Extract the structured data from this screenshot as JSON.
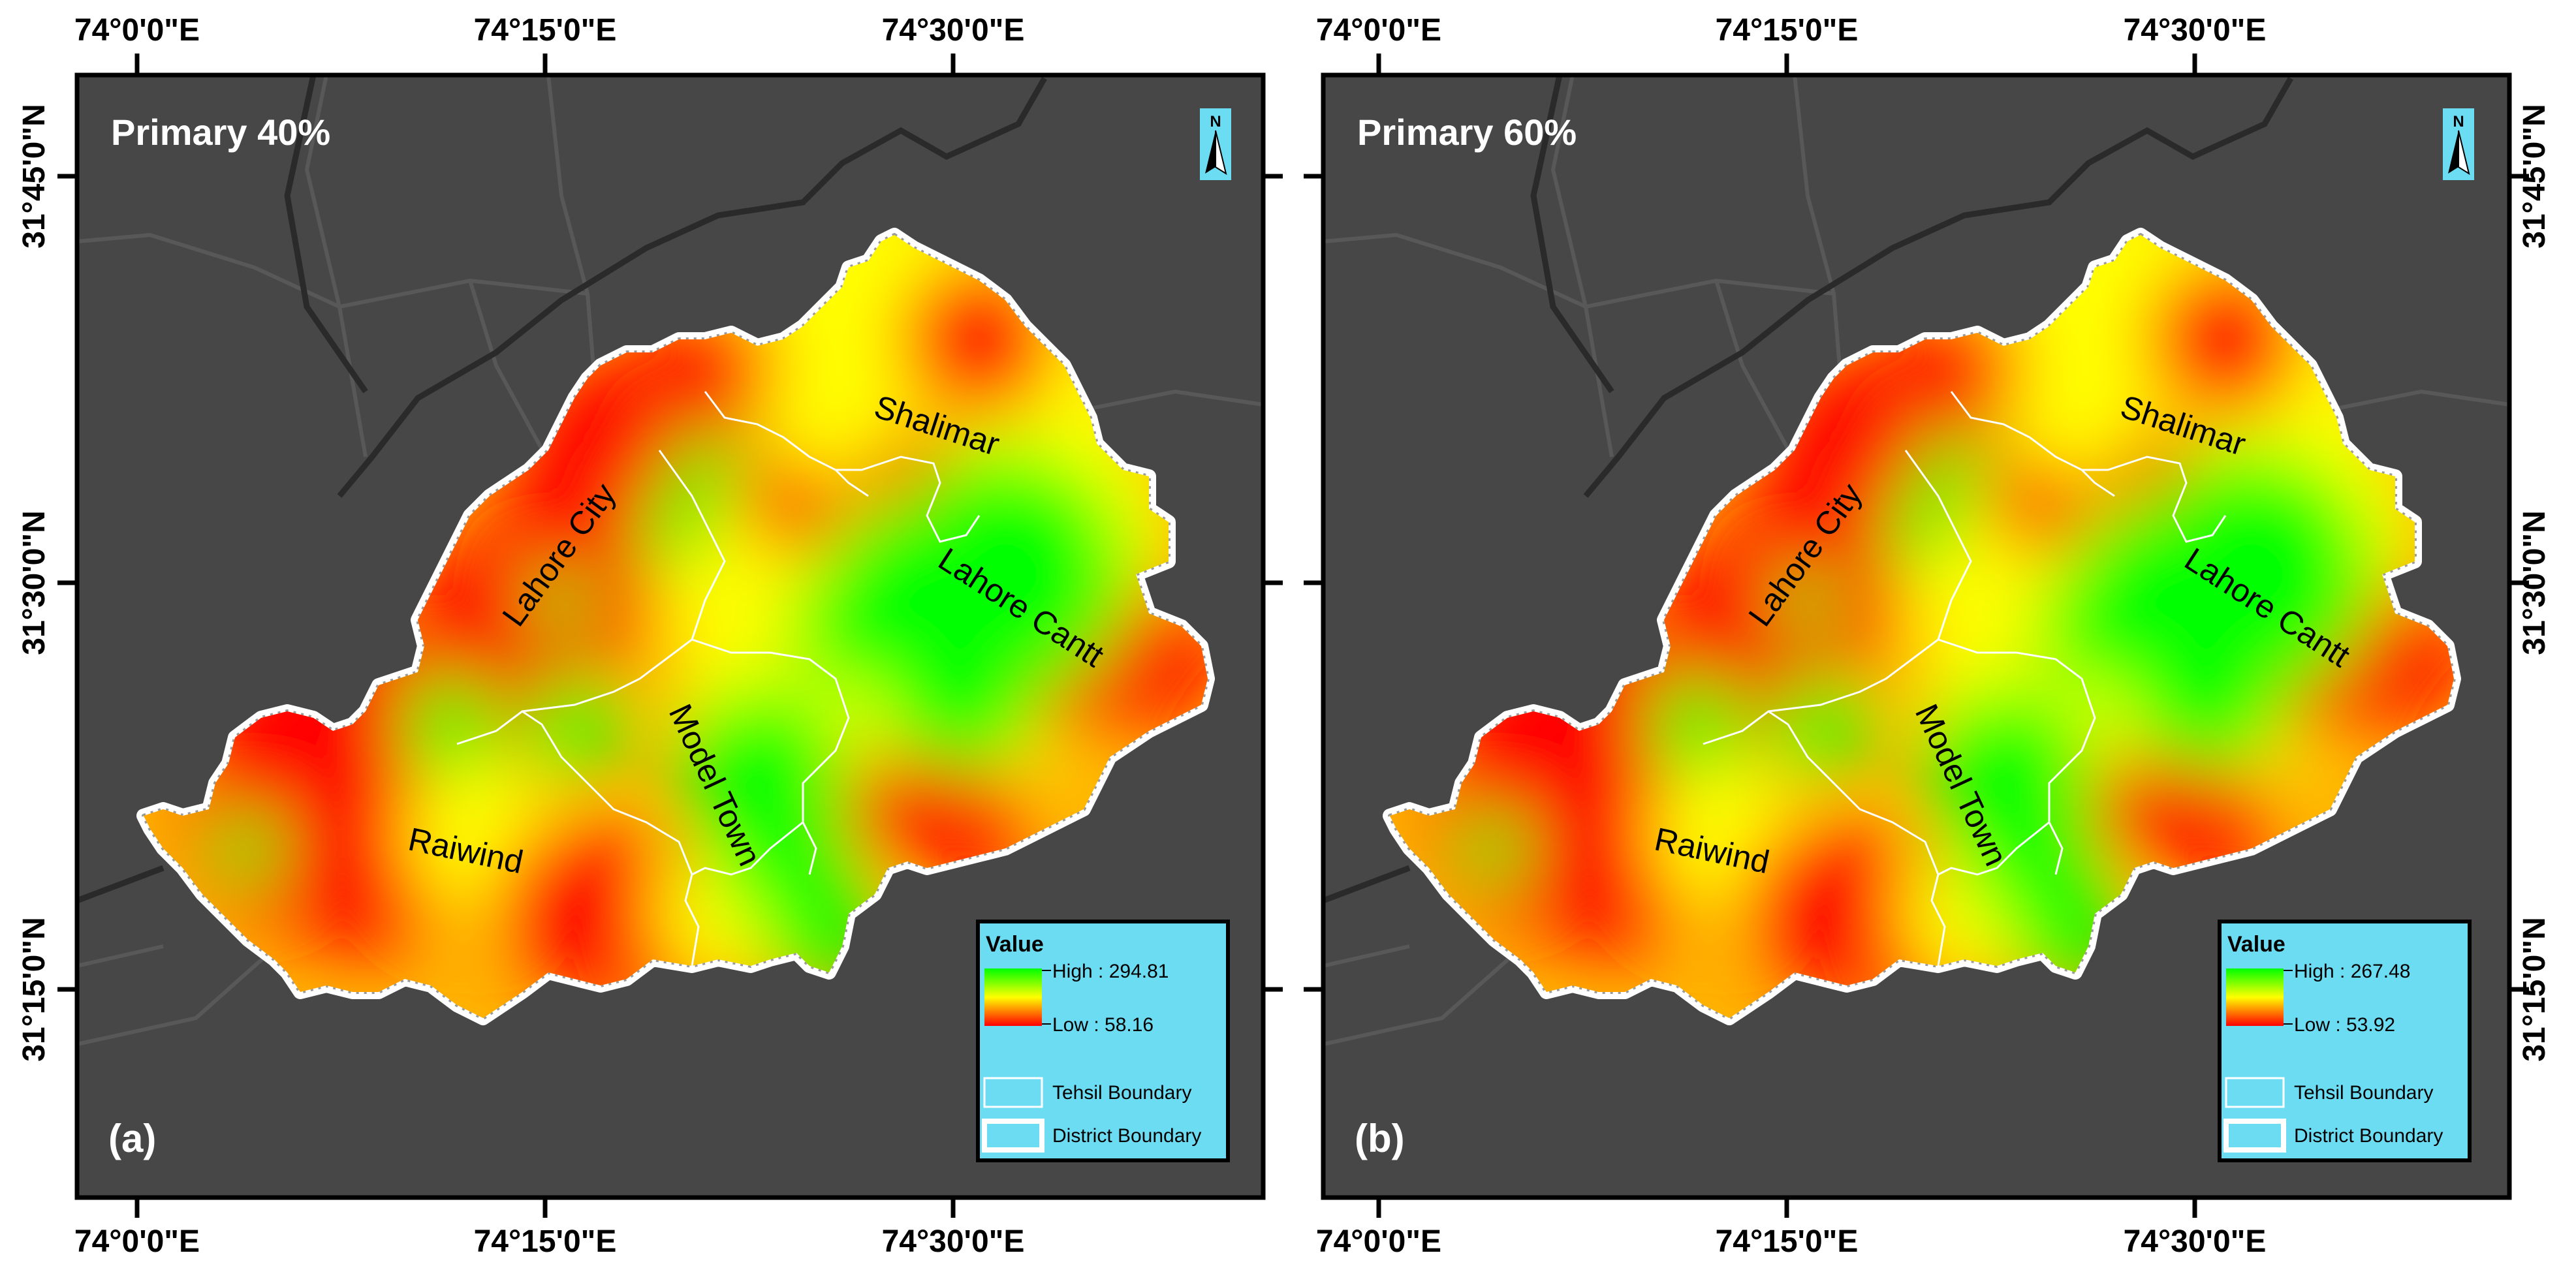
{
  "panels": [
    {
      "title": "Primary 40%",
      "letter": "(a)",
      "legend": {
        "title": "Value",
        "high": "High : 294.81",
        "low": "Low : 58.16",
        "tehsil": "Tehsil Boundary",
        "district": "District Boundary"
      }
    },
    {
      "title": "Primary 60%",
      "letter": "(b)",
      "legend": {
        "title": "Value",
        "high": "High : 267.48",
        "low": "Low : 53.92",
        "tehsil": "Tehsil Boundary",
        "district": "District Boundary"
      }
    }
  ],
  "axis": {
    "lon_labels": [
      "74°0'0\"E",
      "74°15'0\"E",
      "74°30'0\"E"
    ],
    "lat_labels": [
      "31°45'0\"N",
      "31°30'0\"N",
      "31°15'0\"N"
    ]
  },
  "tehsils": [
    "Lahore City",
    "Shalimar",
    "Lahore Cantt",
    "Model Town",
    "Raiwind"
  ],
  "north_arrow": {
    "letter": "N",
    "icon": "north-arrow-icon"
  },
  "colors": {
    "map_background": "#474747",
    "legend_fill": "#6cdcf3",
    "high": "#00ff00",
    "mid": "#ffff00",
    "low": "#ff0000"
  }
}
